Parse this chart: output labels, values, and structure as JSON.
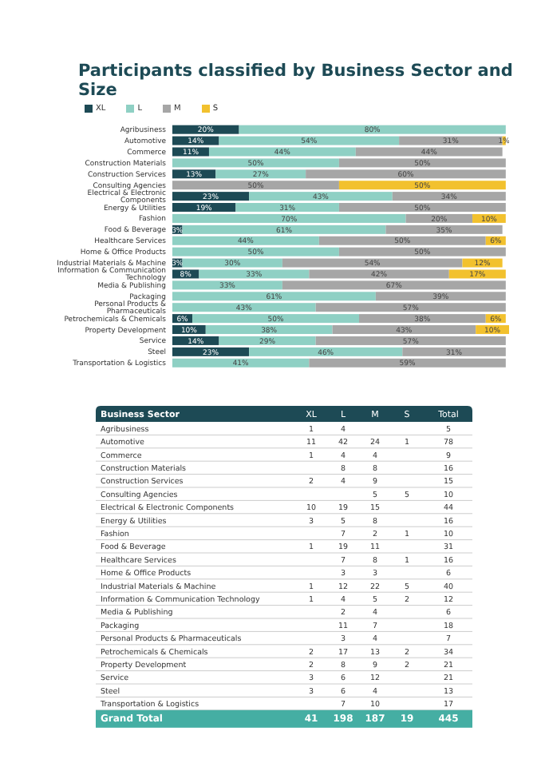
{
  "chart_data": [
    {
      "type": "bar",
      "title": "Participants classified by Business Sector and Size",
      "orientation": "horizontal",
      "stacked": true,
      "legend": "top left",
      "grid": false,
      "categories": [
        "Agribusiness",
        "Automotive",
        "Commerce",
        "Construction Materials",
        "Construction Services",
        "Consulting Agencies",
        "Electrical & Electronic Components",
        "Energy & Utilities",
        "Fashion",
        "Food & Beverage",
        "Healthcare Services",
        "Home & Office Products",
        "Industrial Materials & Machine",
        "Information & Communication Technology",
        "Media & Publishing",
        "Packaging",
        "Personal Products & Pharmaceuticals",
        "Petrochemicals & Chemicals",
        "Property Development",
        "Service",
        "Steel",
        "Transportation & Logistics"
      ],
      "series": [
        {
          "name": "XL",
          "color": "#1d4a55",
          "values": [
            20,
            14,
            11,
            null,
            13,
            null,
            23,
            19,
            null,
            3,
            null,
            null,
            3,
            8,
            null,
            null,
            null,
            6,
            10,
            14,
            23,
            null
          ],
          "value_labels": [
            "20%",
            "14%",
            "11%",
            null,
            "13%",
            null,
            "23%",
            "19%",
            null,
            "3%",
            null,
            null,
            "3%",
            "8%",
            null,
            null,
            null,
            "6%",
            "10%",
            "14%",
            "23%",
            null
          ]
        },
        {
          "name": "L",
          "color": "#8fd0c4",
          "values": [
            80,
            54,
            44,
            50,
            27,
            null,
            43,
            31,
            70,
            61,
            44,
            50,
            30,
            33,
            33,
            61,
            43,
            50,
            38,
            29,
            46,
            41
          ],
          "value_labels": [
            "80%",
            "54%",
            "44%",
            "50%",
            "27%",
            null,
            "43%",
            "31%",
            "70%",
            "61%",
            "44%",
            "50%",
            "30%",
            "33%",
            "33%",
            "61%",
            "43%",
            "50%",
            "38%",
            "29%",
            "46%",
            "41%"
          ]
        },
        {
          "name": "M",
          "color": "#a6a6a6",
          "values": [
            null,
            31,
            44,
            50,
            60,
            50,
            34,
            50,
            20,
            35,
            50,
            50,
            54,
            42,
            67,
            39,
            57,
            38,
            43,
            57,
            31,
            59
          ],
          "value_labels": [
            null,
            "31%",
            "44%",
            "50%",
            "60%",
            "50%",
            "34%",
            "50%",
            "20%",
            "35%",
            "50%",
            "50%",
            "54%",
            "42%",
            "67%",
            "39%",
            "57%",
            "38%",
            "43%",
            "57%",
            "31%",
            "59%"
          ]
        },
        {
          "name": "S",
          "color": "#f2c12e",
          "values": [
            null,
            1,
            null,
            null,
            null,
            50,
            null,
            null,
            10,
            null,
            6,
            null,
            12,
            17,
            null,
            null,
            null,
            6,
            10,
            null,
            null,
            null
          ],
          "value_labels": [
            null,
            "1%",
            null,
            null,
            null,
            "50%",
            null,
            null,
            "10%",
            null,
            "6%",
            null,
            "12%",
            "17%",
            null,
            null,
            null,
            "6%",
            "10%",
            null,
            null,
            null
          ]
        }
      ]
    },
    {
      "type": "heatmap",
      "ylabel": "Business Sector",
      "data_labels": true,
      "categories": [
        "XL",
        "L",
        "M",
        "S",
        "Total"
      ],
      "y_categories": [
        "Agribusiness",
        "Automotive",
        "Commerce",
        "Construction Materials",
        "Construction Services",
        "Consulting Agencies",
        "Electrical & Electronic Components",
        "Energy & Utilities",
        "Fashion",
        "Food & Beverage",
        "Healthcare Services",
        "Home & Office Products",
        "Industrial Materials & Machine",
        "Information & Communication Technology",
        "Media & Publishing",
        "Packaging",
        "Personal Products & Pharmaceuticals",
        "Petrochemicals & Chemicals",
        "Property Development",
        "Service",
        "Steel",
        "Transportation & Logistics",
        "Grand Total"
      ],
      "cells": [
        [
          1,
          4,
          null,
          null,
          5
        ],
        [
          11,
          42,
          24,
          1,
          78
        ],
        [
          1,
          4,
          4,
          null,
          9
        ],
        [
          null,
          8,
          8,
          null,
          16
        ],
        [
          2,
          4,
          9,
          null,
          15
        ],
        [
          null,
          null,
          5,
          5,
          10
        ],
        [
          10,
          19,
          15,
          null,
          44
        ],
        [
          3,
          5,
          8,
          null,
          16
        ],
        [
          null,
          7,
          2,
          1,
          10
        ],
        [
          1,
          19,
          11,
          null,
          31
        ],
        [
          null,
          7,
          8,
          1,
          16
        ],
        [
          null,
          3,
          3,
          null,
          6
        ],
        [
          1,
          12,
          22,
          5,
          40
        ],
        [
          1,
          4,
          5,
          2,
          12
        ],
        [
          null,
          2,
          4,
          null,
          6
        ],
        [
          null,
          11,
          7,
          null,
          18
        ],
        [
          null,
          3,
          4,
          null,
          7
        ],
        [
          2,
          17,
          13,
          2,
          34
        ],
        [
          2,
          8,
          9,
          2,
          21
        ],
        [
          3,
          6,
          12,
          null,
          21
        ],
        [
          3,
          6,
          4,
          null,
          13
        ],
        [
          null,
          7,
          10,
          null,
          17
        ],
        [
          41,
          198,
          187,
          19,
          445
        ]
      ]
    }
  ]
}
